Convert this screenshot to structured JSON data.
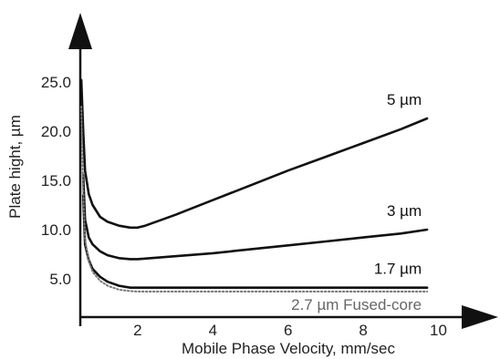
{
  "chart_data": {
    "type": "line",
    "title": "",
    "xlabel": "Mobile Phase Velocity, mm/sec",
    "ylabel": "Plate hight, µm",
    "xlim": [
      0,
      10
    ],
    "ylim": [
      0,
      25
    ],
    "x_ticks": [
      "2",
      "4",
      "6",
      "8",
      "10"
    ],
    "y_ticks": [
      "5.0",
      "10.0",
      "15.0",
      "20.0",
      "25.0"
    ],
    "grid": false,
    "legend": "direct labels at right end of each curve",
    "series": [
      {
        "name": "5 µm",
        "color": "#111111",
        "style": "solid",
        "x": [
          0.5,
          0.55,
          0.6,
          0.7,
          0.8,
          1.0,
          1.2,
          1.5,
          1.8,
          2.0,
          2.2,
          3,
          4,
          5,
          6,
          7,
          8,
          9,
          9.7
        ],
        "y": [
          25.2,
          20,
          16,
          13.6,
          12.5,
          11.3,
          10.8,
          10.4,
          10.2,
          10.2,
          10.4,
          11.5,
          13.0,
          14.5,
          16.0,
          17.4,
          18.8,
          20.2,
          21.3
        ]
      },
      {
        "name": "3 µm",
        "color": "#111111",
        "style": "solid",
        "x": [
          0.55,
          0.6,
          0.7,
          0.8,
          1.0,
          1.2,
          1.5,
          1.8,
          2.0,
          3,
          4,
          5,
          6,
          7,
          8,
          9,
          9.7
        ],
        "y": [
          15.5,
          11,
          9.2,
          8.5,
          7.8,
          7.4,
          7.1,
          7.0,
          7.0,
          7.3,
          7.6,
          8.0,
          8.4,
          8.8,
          9.2,
          9.6,
          10.0
        ]
      },
      {
        "name": "1.7 µm",
        "color": "#111111",
        "style": "solid",
        "x": [
          0.55,
          0.6,
          0.7,
          0.8,
          1.0,
          1.2,
          1.5,
          1.8,
          2.0,
          3,
          4,
          5,
          6,
          7,
          8,
          9,
          9.7
        ],
        "y": [
          13.5,
          8.5,
          6.9,
          6.0,
          5.2,
          4.7,
          4.3,
          4.1,
          4.1,
          4.1,
          4.1,
          4.1,
          4.1,
          4.1,
          4.1,
          4.1,
          4.1
        ]
      },
      {
        "name": "2.7 µm Fused-core",
        "color": "#777777",
        "style": "dotted",
        "x": [
          0.5,
          0.55,
          0.6,
          0.7,
          0.8,
          1.0,
          1.2,
          1.5,
          1.8,
          2.0,
          3,
          4,
          5,
          6,
          7,
          8,
          9,
          9.7
        ],
        "y": [
          22.5,
          14,
          9.0,
          6.8,
          5.7,
          4.8,
          4.3,
          3.9,
          3.75,
          3.7,
          3.7,
          3.7,
          3.7,
          3.7,
          3.7,
          3.7,
          3.7,
          3.7
        ]
      }
    ]
  }
}
